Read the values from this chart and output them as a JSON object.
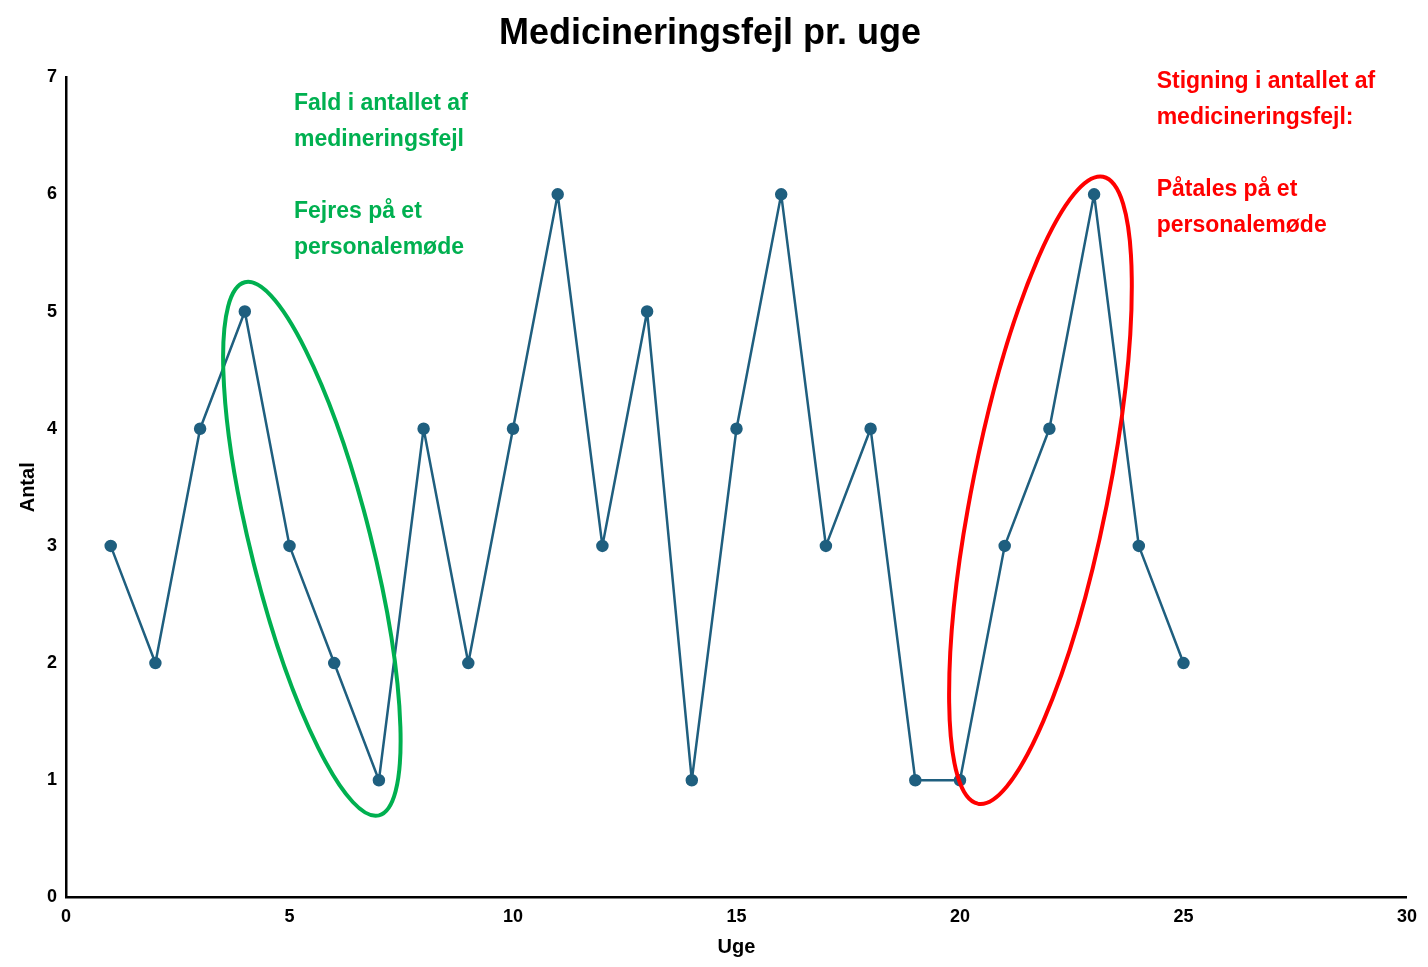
{
  "chart_data": {
    "type": "line",
    "title": "Medicineringsfejl pr. uge",
    "xlabel": "Uge",
    "ylabel": "Antal",
    "x": [
      1,
      2,
      3,
      4,
      5,
      6,
      7,
      8,
      9,
      10,
      11,
      12,
      13,
      14,
      15,
      16,
      17,
      18,
      19,
      20,
      21,
      22,
      23,
      24,
      25
    ],
    "series": [
      {
        "color": "#1f5f7f",
        "values": [
          3,
          2,
          4,
          5,
          3,
          2,
          1,
          4,
          2,
          4,
          6,
          3,
          5,
          1,
          4,
          6,
          3,
          4,
          1,
          1,
          3,
          4,
          6,
          3,
          2
        ]
      }
    ],
    "xlim": [
      0,
      30
    ],
    "xticks": [
      0,
      5,
      10,
      15,
      20,
      25,
      30
    ],
    "ylim": [
      0,
      7
    ],
    "yticks": [
      0,
      1,
      2,
      3,
      4,
      5,
      6,
      7
    ],
    "grid": false,
    "legend": false,
    "marker": "circle",
    "line_style": "solid",
    "annotations": [
      "Fald i antallet af\nmedineringsfejl\n\nFejres på et\npersonalemøde",
      "Stigning i antallet af\nmedicineringsfejl:\n\nPåtales på et\npersonalemøde"
    ]
  }
}
